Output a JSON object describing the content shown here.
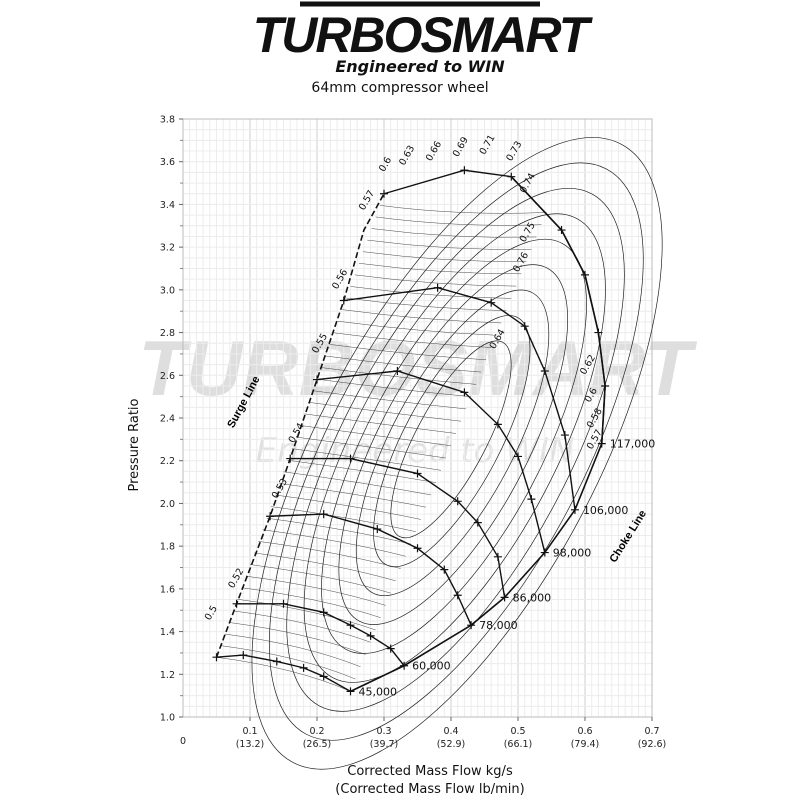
{
  "brand": {
    "logo_text": "TURBOSMART",
    "tagline": "Engineered to WIN",
    "watermark_text": "TURBOSMART",
    "watermark_tagline": "Engineered to WIN"
  },
  "chart_data": {
    "type": "compressor map",
    "title": "64mm compressor wheel",
    "xlabel": "Corrected Mass Flow kg/s",
    "xlabel2": "(Corrected Mass Flow lb/min)",
    "ylabel": "Pressure Ratio",
    "xlim": [
      0,
      0.7
    ],
    "ylim": [
      1.0,
      3.8
    ],
    "grid": true,
    "x_origin_label": "0",
    "x_ticks": [
      {
        "value": 0.1,
        "label": "0.1",
        "label2": "(13.2)"
      },
      {
        "value": 0.2,
        "label": "0.2",
        "label2": "(26.5)"
      },
      {
        "value": 0.3,
        "label": "0.3",
        "label2": "(39.7)"
      },
      {
        "value": 0.4,
        "label": "0.4",
        "label2": "(52.9)"
      },
      {
        "value": 0.5,
        "label": "0.5",
        "label2": "(66.1)"
      },
      {
        "value": 0.6,
        "label": "0.6",
        "label2": "(79.4)"
      },
      {
        "value": 0.7,
        "label": "0.7",
        "label2": "(92.6)"
      }
    ],
    "y_ticks": [
      "1.0",
      "1.2",
      "1.4",
      "1.6",
      "1.8",
      "2.0",
      "2.2",
      "2.4",
      "2.6",
      "2.8",
      "3.0",
      "3.2",
      "3.4",
      "3.6",
      "3.8"
    ],
    "surge_line": {
      "label": "Surge Line",
      "points": [
        [
          0.05,
          1.28
        ],
        [
          0.08,
          1.53
        ],
        [
          0.13,
          1.94
        ],
        [
          0.16,
          2.21
        ],
        [
          0.2,
          2.58
        ],
        [
          0.24,
          2.95
        ],
        [
          0.27,
          3.28
        ],
        [
          0.3,
          3.45
        ]
      ]
    },
    "choke_line": {
      "label": "Choke Line",
      "points": [
        [
          0.25,
          1.12
        ],
        [
          0.33,
          1.24
        ],
        [
          0.43,
          1.43
        ],
        [
          0.48,
          1.56
        ],
        [
          0.54,
          1.77
        ],
        [
          0.585,
          1.97
        ],
        [
          0.625,
          2.28
        ],
        [
          0.63,
          2.55
        ],
        [
          0.62,
          2.8
        ],
        [
          0.6,
          3.07
        ],
        [
          0.565,
          3.28
        ],
        [
          0.49,
          3.53
        ]
      ]
    },
    "speed_lines": [
      {
        "label": "45,000",
        "points": [
          [
            0.05,
            1.28
          ],
          [
            0.09,
            1.29
          ],
          [
            0.14,
            1.26
          ],
          [
            0.18,
            1.23
          ],
          [
            0.21,
            1.19
          ],
          [
            0.25,
            1.12
          ]
        ]
      },
      {
        "label": "60,000",
        "points": [
          [
            0.08,
            1.53
          ],
          [
            0.15,
            1.53
          ],
          [
            0.21,
            1.49
          ],
          [
            0.25,
            1.43
          ],
          [
            0.28,
            1.38
          ],
          [
            0.31,
            1.32
          ],
          [
            0.33,
            1.24
          ]
        ]
      },
      {
        "label": "78,000",
        "points": [
          [
            0.13,
            1.94
          ],
          [
            0.21,
            1.95
          ],
          [
            0.29,
            1.88
          ],
          [
            0.35,
            1.79
          ],
          [
            0.39,
            1.69
          ],
          [
            0.41,
            1.57
          ],
          [
            0.43,
            1.43
          ]
        ]
      },
      {
        "label": "86,000",
        "points": [
          [
            0.16,
            2.21
          ],
          [
            0.25,
            2.21
          ],
          [
            0.35,
            2.14
          ],
          [
            0.41,
            2.01
          ],
          [
            0.44,
            1.91
          ],
          [
            0.47,
            1.75
          ],
          [
            0.48,
            1.56
          ]
        ]
      },
      {
        "label": "98,000",
        "points": [
          [
            0.2,
            2.58
          ],
          [
            0.32,
            2.62
          ],
          [
            0.42,
            2.52
          ],
          [
            0.47,
            2.37
          ],
          [
            0.5,
            2.22
          ],
          [
            0.52,
            2.02
          ],
          [
            0.54,
            1.77
          ]
        ]
      },
      {
        "label": "106,000",
        "points": [
          [
            0.24,
            2.95
          ],
          [
            0.38,
            3.01
          ],
          [
            0.46,
            2.94
          ],
          [
            0.51,
            2.83
          ],
          [
            0.54,
            2.62
          ],
          [
            0.57,
            2.32
          ],
          [
            0.585,
            1.97
          ]
        ]
      },
      {
        "label": "117,000",
        "points": [
          [
            0.3,
            3.45
          ],
          [
            0.42,
            3.56
          ],
          [
            0.49,
            3.53
          ],
          [
            0.565,
            3.28
          ],
          [
            0.6,
            3.07
          ],
          [
            0.62,
            2.8
          ],
          [
            0.63,
            2.55
          ],
          [
            0.625,
            2.28
          ]
        ]
      }
    ],
    "efficiency_islands": [
      "0.5",
      "0.52",
      "0.53",
      "0.54",
      "0.55",
      "0.56",
      "0.57",
      "0.6",
      "0.63",
      "0.66",
      "0.69",
      "0.71",
      "0.73",
      "0.74",
      "0.75",
      "0.76",
      "0.64",
      "0.62",
      "0.6",
      "0.58",
      "0.57"
    ]
  }
}
